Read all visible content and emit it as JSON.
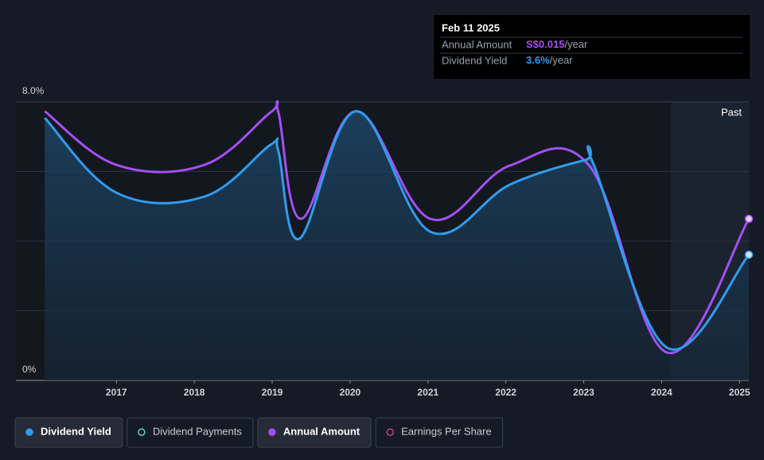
{
  "chart_data": {
    "type": "line",
    "xlim": [
      2015.71,
      2025.12
    ],
    "xticks": [
      2017,
      2018,
      2019,
      2020,
      2021,
      2022,
      2023,
      2024,
      2025
    ],
    "ylim": [
      0,
      8
    ],
    "yticks": [
      {
        "value": 0,
        "label": "0%"
      },
      {
        "value": 8,
        "label": "8.0%"
      }
    ],
    "ygrid": [
      2,
      4,
      6
    ],
    "shaded_region": {
      "from": 2024.12,
      "label": "Past"
    },
    "series": [
      {
        "name": "Dividend Yield",
        "color": "#2f9cf0",
        "x": [
          2016.08,
          2017.0,
          2018.13,
          2018.98,
          2019.08,
          2019.35,
          2020.08,
          2021.03,
          2022.05,
          2023.02,
          2023.12,
          2024.07,
          2025.12
        ],
        "values": [
          7.54,
          5.39,
          5.28,
          6.77,
          6.58,
          4.07,
          7.73,
          4.27,
          5.62,
          6.33,
          6.24,
          0.94,
          3.61
        ]
      },
      {
        "name": "Annual Amount",
        "color": "#a44ff0",
        "x": [
          2016.08,
          2017.0,
          2018.13,
          2018.98,
          2019.08,
          2019.37,
          2020.08,
          2021.03,
          2022.05,
          2023.07,
          2024.07,
          2025.12
        ],
        "values": [
          7.73,
          6.19,
          6.19,
          7.7,
          7.7,
          4.64,
          7.73,
          4.64,
          6.17,
          6.17,
          0.8,
          4.64
        ]
      }
    ],
    "other_legend_entries": [
      {
        "name": "Dividend Payments",
        "color": "#5fd3c6"
      },
      {
        "name": "Earnings Per Share",
        "color": "#d0397f"
      }
    ],
    "tooltip": {
      "date": "Feb 11 2025",
      "rows": [
        {
          "label": "Annual Amount",
          "value": "S$0.015",
          "unit": "/year",
          "color": "#a44ff0"
        },
        {
          "label": "Dividend Yield",
          "value": "3.6%",
          "unit": "/year",
          "color": "#2f9cf0"
        }
      ]
    }
  }
}
